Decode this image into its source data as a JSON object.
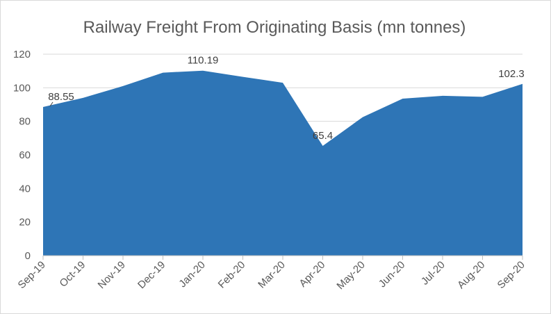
{
  "chart_data": {
    "type": "area",
    "title": "Railway Freight From Originating Basis (mn tonnes)",
    "xlabel": "",
    "ylabel": "",
    "categories": [
      "Sep-19",
      "Oct-19",
      "Nov-19",
      "Dec-19",
      "Jan-20",
      "Feb-20",
      "Mar-20",
      "Apr-20",
      "May-20",
      "Jun-20",
      "Jul-20",
      "Aug-20",
      "Sep-20"
    ],
    "series": [
      {
        "values": [
          88.55,
          94,
          101,
          109,
          110.19,
          106.5,
          103,
          65.4,
          82.5,
          93.5,
          95.2,
          94.6,
          102.3
        ],
        "color": "#2E75B6"
      }
    ],
    "ylim": [
      0,
      120
    ],
    "yticks": [
      0,
      20,
      40,
      60,
      80,
      100,
      120
    ],
    "grid": true,
    "legend": "none",
    "data_labels": [
      {
        "index": 0,
        "text": "88.55"
      },
      {
        "index": 4,
        "text": "110.19"
      },
      {
        "index": 7,
        "text": "65.4"
      },
      {
        "index": 12,
        "text": "102.3"
      }
    ]
  }
}
